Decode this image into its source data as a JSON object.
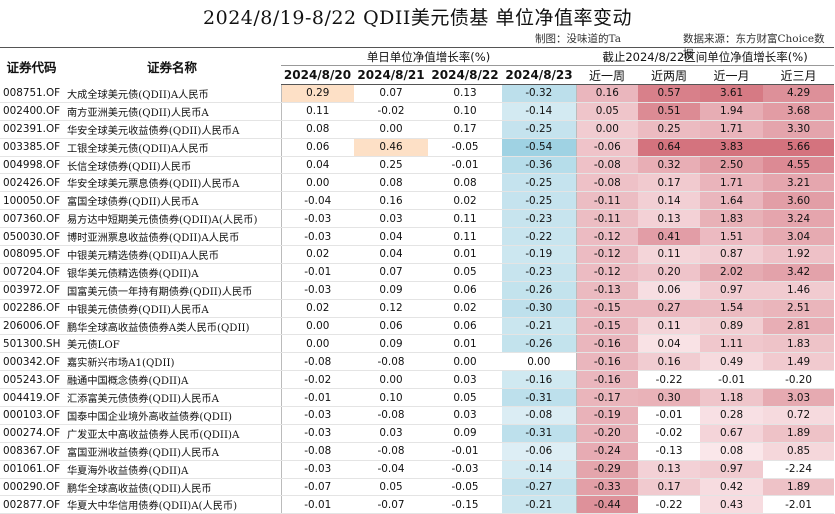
{
  "title": "2024/8/19-8/22 QDII美元债基 单位净值率变动",
  "credits": {
    "maker": "制图：没味道的Ta",
    "source": "数据来源：东方财富Choice数据"
  },
  "headers": {
    "code": "证券代码",
    "name": "证券名称",
    "daily_group": "单日单位净值增长率(%)",
    "period_group": "截止2024/8/22区间单位净值增长率(%)",
    "daily": [
      "2024/8/20",
      "2024/8/21",
      "2024/8/22",
      "2024/8/23"
    ],
    "period": [
      "近一周",
      "近两周",
      "近一月",
      "近三月"
    ]
  },
  "colors": {
    "red_scale_light": "#fbe9ec",
    "red_scale_dark": "#d4737e",
    "orange_highlight": "#fde0c6",
    "blue_scale_light": "#e5f2f7",
    "blue_scale_dark": "#9fd2e3"
  },
  "rows": [
    {
      "code": "008751.OF",
      "name": "大成全球美元债(QDII)A人民币",
      "d": [
        "0.29",
        "0.07",
        "0.13",
        "-0.32"
      ],
      "p": [
        "0.16",
        "0.57",
        "3.61",
        "4.29"
      ]
    },
    {
      "code": "002400.OF",
      "name": "南方亚洲美元债(QDII)人民币A",
      "d": [
        "0.11",
        "-0.02",
        "0.10",
        "-0.14"
      ],
      "p": [
        "0.05",
        "0.51",
        "1.94",
        "3.68"
      ]
    },
    {
      "code": "002391.OF",
      "name": "华安全球美元收益债券(QDII)人民币A",
      "d": [
        "0.08",
        "0.00",
        "0.17",
        "-0.25"
      ],
      "p": [
        "0.00",
        "0.25",
        "1.71",
        "3.30"
      ]
    },
    {
      "code": "003385.OF",
      "name": "工银全球美元债(QDII)A人民币",
      "d": [
        "0.06",
        "0.46",
        "-0.05",
        "-0.54"
      ],
      "p": [
        "-0.06",
        "0.64",
        "3.83",
        "5.66"
      ]
    },
    {
      "code": "004998.OF",
      "name": "长信全球债券(QDII)人民币",
      "d": [
        "0.04",
        "0.25",
        "-0.01",
        "-0.36"
      ],
      "p": [
        "-0.08",
        "0.32",
        "2.50",
        "4.55"
      ]
    },
    {
      "code": "002426.OF",
      "name": "华安全球美元票息债券(QDII)人民币A",
      "d": [
        "0.00",
        "0.08",
        "0.08",
        "-0.25"
      ],
      "p": [
        "-0.08",
        "0.17",
        "1.71",
        "3.21"
      ]
    },
    {
      "code": "100050.OF",
      "name": "富国全球债券(QDII)人民币A",
      "d": [
        "-0.04",
        "0.16",
        "0.02",
        "-0.25"
      ],
      "p": [
        "-0.11",
        "0.14",
        "1.64",
        "3.60"
      ]
    },
    {
      "code": "007360.OF",
      "name": "易方达中短期美元债债券(QDII)A(人民币)",
      "d": [
        "-0.03",
        "0.03",
        "0.11",
        "-0.23"
      ],
      "p": [
        "-0.11",
        "0.13",
        "1.83",
        "3.24"
      ]
    },
    {
      "code": "050030.OF",
      "name": "博时亚洲票息收益债券(QDII)A人民币",
      "d": [
        "-0.03",
        "0.04",
        "0.11",
        "-0.22"
      ],
      "p": [
        "-0.12",
        "0.41",
        "1.51",
        "3.04"
      ]
    },
    {
      "code": "008095.OF",
      "name": "中银美元精选债券(QDII)A人民币",
      "d": [
        "0.02",
        "0.04",
        "0.01",
        "-0.19"
      ],
      "p": [
        "-0.12",
        "0.11",
        "0.87",
        "1.92"
      ]
    },
    {
      "code": "007204.OF",
      "name": "银华美元债精选债券(QDII)A",
      "d": [
        "-0.01",
        "0.07",
        "0.05",
        "-0.23"
      ],
      "p": [
        "-0.12",
        "0.20",
        "2.02",
        "3.42"
      ]
    },
    {
      "code": "003972.OF",
      "name": "国富美元债一年持有期债券(QDII)人民币",
      "d": [
        "-0.03",
        "0.09",
        "0.06",
        "-0.26"
      ],
      "p": [
        "-0.13",
        "0.06",
        "0.97",
        "1.46"
      ]
    },
    {
      "code": "002286.OF",
      "name": "中银美元债债券(QDII)人民币A",
      "d": [
        "0.02",
        "0.12",
        "0.02",
        "-0.30"
      ],
      "p": [
        "-0.15",
        "0.27",
        "1.54",
        "2.51"
      ]
    },
    {
      "code": "206006.OF",
      "name": "鹏华全球高收益债债券A类人民币(QDII)",
      "d": [
        "0.00",
        "0.06",
        "0.06",
        "-0.21"
      ],
      "p": [
        "-0.15",
        "0.11",
        "0.89",
        "2.81"
      ]
    },
    {
      "code": "501300.SH",
      "name": "美元债LOF",
      "d": [
        "0.00",
        "0.09",
        "0.01",
        "-0.26"
      ],
      "p": [
        "-0.16",
        "0.04",
        "1.11",
        "1.83"
      ]
    },
    {
      "code": "000342.OF",
      "name": "嘉实新兴市场A1(QDII)",
      "d": [
        "-0.08",
        "-0.08",
        "0.00",
        "0.00"
      ],
      "p": [
        "-0.16",
        "0.16",
        "0.49",
        "1.49"
      ]
    },
    {
      "code": "005243.OF",
      "name": "融通中国概念债券(QDII)A",
      "d": [
        "-0.02",
        "0.00",
        "0.03",
        "-0.16"
      ],
      "p": [
        "-0.16",
        "-0.22",
        "-0.01",
        "-0.20"
      ]
    },
    {
      "code": "004419.OF",
      "name": "汇添富美元债债券(QDII)人民币A",
      "d": [
        "-0.01",
        "0.10",
        "0.05",
        "-0.31"
      ],
      "p": [
        "-0.17",
        "0.30",
        "1.18",
        "3.03"
      ]
    },
    {
      "code": "000103.OF",
      "name": "国泰中国企业境外高收益债券(QDII)",
      "d": [
        "-0.03",
        "-0.08",
        "0.03",
        "-0.08"
      ],
      "p": [
        "-0.19",
        "-0.01",
        "0.28",
        "0.72"
      ]
    },
    {
      "code": "000274.OF",
      "name": "广发亚太中高收益债券人民币(QDII)A",
      "d": [
        "-0.03",
        "0.03",
        "0.09",
        "-0.31"
      ],
      "p": [
        "-0.20",
        "-0.02",
        "0.67",
        "1.89"
      ]
    },
    {
      "code": "008367.OF",
      "name": "富国亚洲收益债券(QDII)人民币A",
      "d": [
        "-0.08",
        "-0.08",
        "-0.01",
        "-0.06"
      ],
      "p": [
        "-0.24",
        "-0.13",
        "0.08",
        "0.85"
      ]
    },
    {
      "code": "001061.OF",
      "name": "华夏海外收益债券(QDII)A",
      "d": [
        "-0.03",
        "-0.04",
        "-0.03",
        "-0.14"
      ],
      "p": [
        "-0.29",
        "0.13",
        "0.97",
        "-2.24"
      ]
    },
    {
      "code": "000290.OF",
      "name": "鹏华全球高收益债(QDII)人民币",
      "d": [
        "-0.07",
        "0.05",
        "-0.05",
        "-0.27"
      ],
      "p": [
        "-0.33",
        "0.17",
        "0.42",
        "1.89"
      ]
    },
    {
      "code": "002877.OF",
      "name": "华夏大中华信用债券(QDII)A(人民币)",
      "d": [
        "-0.01",
        "-0.07",
        "-0.15",
        "-0.21"
      ],
      "p": [
        "-0.44",
        "-0.22",
        "0.43",
        "-2.01"
      ]
    }
  ]
}
